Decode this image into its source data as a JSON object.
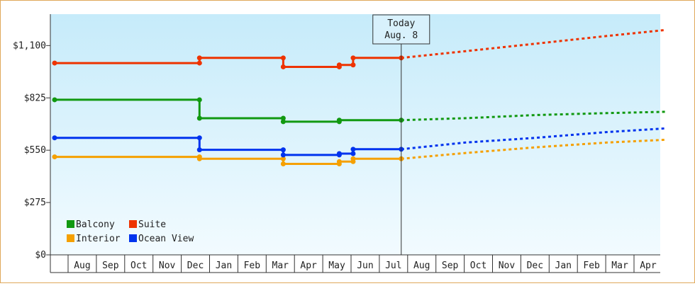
{
  "chart_data": {
    "type": "line",
    "ylim": [
      0,
      1265
    ],
    "y_ticks": [
      {
        "value": 0,
        "label": "$0"
      },
      {
        "value": 275,
        "label": "$275"
      },
      {
        "value": 550,
        "label": "$550"
      },
      {
        "value": 825,
        "label": "$825"
      },
      {
        "value": 1100,
        "label": "$1,100"
      }
    ],
    "month_labels": [
      "Aug",
      "Sep",
      "Oct",
      "Nov",
      "Dec",
      "Jan",
      "Feb",
      "Mar",
      "Apr",
      "May",
      "Jun",
      "Jul",
      "Aug",
      "Sep",
      "Oct",
      "Nov",
      "Dec",
      "Jan",
      "Feb",
      "Mar",
      "Apr"
    ],
    "grid": false,
    "legend_position": "bottom-left",
    "today": {
      "line1": "Today",
      "line2": "Aug. 8",
      "month_index": 12.25
    },
    "series": [
      {
        "name": "Balcony",
        "color": "#119911",
        "points": [
          [
            0.0,
            815
          ],
          [
            5.12,
            815
          ],
          [
            5.12,
            718
          ],
          [
            8.08,
            718
          ],
          [
            8.08,
            700
          ],
          [
            10.06,
            700
          ],
          [
            10.06,
            708
          ],
          [
            12.25,
            708
          ]
        ],
        "forecast": [
          [
            12.25,
            708
          ],
          [
            14.5,
            718
          ],
          [
            17,
            735
          ],
          [
            19.5,
            745
          ],
          [
            21.6,
            752
          ]
        ]
      },
      {
        "name": "Suite",
        "color": "#ee3300",
        "points": [
          [
            0.0,
            1008
          ],
          [
            5.12,
            1008
          ],
          [
            5.12,
            1035
          ],
          [
            8.08,
            1035
          ],
          [
            8.08,
            988
          ],
          [
            10.06,
            988
          ],
          [
            10.06,
            998
          ],
          [
            10.55,
            998
          ],
          [
            10.55,
            1035
          ],
          [
            12.25,
            1035
          ]
        ],
        "forecast": [
          [
            12.25,
            1035
          ],
          [
            14.5,
            1070
          ],
          [
            17,
            1110
          ],
          [
            19.5,
            1150
          ],
          [
            21.6,
            1182
          ]
        ]
      },
      {
        "name": "Interior",
        "color": "#f5a000",
        "points": [
          [
            0.0,
            515
          ],
          [
            5.12,
            515
          ],
          [
            5.12,
            505
          ],
          [
            8.08,
            505
          ],
          [
            8.08,
            478
          ],
          [
            10.06,
            478
          ],
          [
            10.06,
            490
          ],
          [
            10.55,
            490
          ],
          [
            10.55,
            505
          ],
          [
            12.25,
            505
          ]
        ],
        "forecast": [
          [
            12.25,
            505
          ],
          [
            14.5,
            535
          ],
          [
            17,
            565
          ],
          [
            19.5,
            590
          ],
          [
            21.6,
            605
          ]
        ]
      },
      {
        "name": "Ocean View",
        "color": "#0033ee",
        "points": [
          [
            0.0,
            615
          ],
          [
            5.12,
            615
          ],
          [
            5.12,
            552
          ],
          [
            8.08,
            552
          ],
          [
            8.08,
            525
          ],
          [
            10.06,
            525
          ],
          [
            10.06,
            532
          ],
          [
            10.55,
            532
          ],
          [
            10.55,
            555
          ],
          [
            12.25,
            555
          ]
        ],
        "forecast": [
          [
            12.25,
            555
          ],
          [
            14.5,
            590
          ],
          [
            17,
            615
          ],
          [
            19.5,
            645
          ],
          [
            21.6,
            665
          ]
        ]
      }
    ]
  }
}
